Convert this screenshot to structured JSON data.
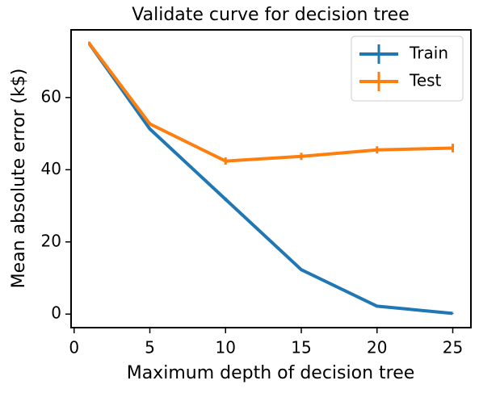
{
  "chart_data": {
    "type": "line",
    "title": "Validate curve for decision tree",
    "x_label": "Maximum depth of decision tree",
    "y_label": "Mean absolute error (k$)",
    "x": [
      1,
      5,
      10,
      15,
      20,
      25
    ],
    "series": [
      {
        "name": "Train",
        "color": "#1f77b4",
        "values": [
          74.9,
          51.3,
          31.8,
          12.3,
          2.2,
          0.2
        ],
        "errors": [
          0.3,
          0.3,
          0.5,
          0.3,
          0.2,
          0.1
        ]
      },
      {
        "name": "Test",
        "color": "#ff7f0e",
        "values": [
          75.0,
          52.7,
          42.4,
          43.7,
          45.5,
          46.0
        ],
        "errors": [
          0.5,
          0.5,
          1.0,
          1.0,
          1.0,
          1.2
        ]
      }
    ],
    "xlim": [
      -0.2,
      26.2
    ],
    "xticks": [
      0,
      5,
      10,
      15,
      20,
      25
    ],
    "ylim": [
      -3.75,
      78.75
    ],
    "yticks": [
      0,
      20,
      40,
      60
    ],
    "legend": "upper right"
  }
}
